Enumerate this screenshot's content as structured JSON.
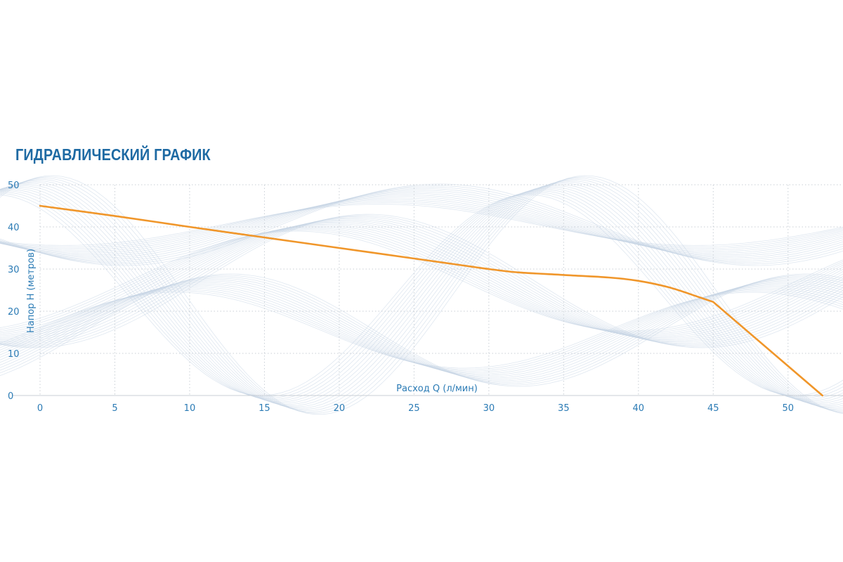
{
  "title": "ГИДРАВЛИЧЕСКИЙ ГРАФИК",
  "colors": {
    "title": "#1e6aa3",
    "axis_text": "#2b7bb5",
    "grid": "#c9cfd6",
    "curve": "#f0962a",
    "waves": "#c5d3e3"
  },
  "chart_data": {
    "type": "line",
    "title": "ГИДРАВЛИЧЕСКИЙ ГРАФИК",
    "xlabel": "Расход Q (л/мин)",
    "ylabel": "Напор Н (метров)",
    "xlim": [
      0,
      52.5
    ],
    "ylim": [
      0,
      50
    ],
    "xticks": [
      0,
      5,
      10,
      15,
      20,
      25,
      30,
      35,
      40,
      45,
      50
    ],
    "yticks": [
      0,
      10,
      20,
      30,
      40,
      50
    ],
    "grid": true,
    "series": [
      {
        "x": [
          0,
          5,
          10,
          15,
          20,
          25,
          28,
          30,
          32,
          35,
          38,
          40,
          42,
          44,
          45,
          52.3
        ],
        "y": [
          45,
          42.6,
          40,
          37.5,
          35,
          32.5,
          31,
          30,
          29.2,
          28.6,
          28,
          27.2,
          25.7,
          23.4,
          22.2,
          0
        ]
      }
    ]
  }
}
